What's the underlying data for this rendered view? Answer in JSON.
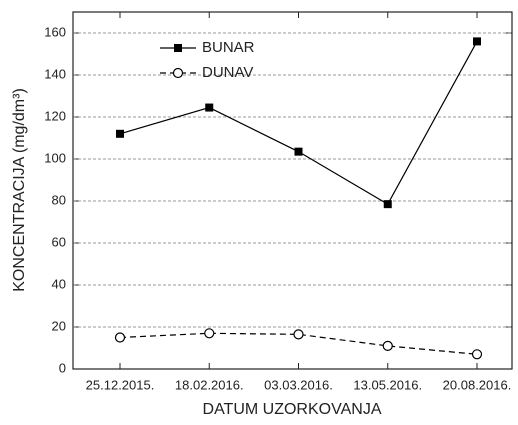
{
  "chart_data": {
    "type": "line",
    "categories": [
      "25.12.2015.",
      "18.02.2016.",
      "03.03.2016.",
      "13.05.2016.",
      "20.08.2016."
    ],
    "series": [
      {
        "name": "BUNAR",
        "color": "#000000",
        "line_style": "solid",
        "marker": "square",
        "values": [
          112,
          124.5,
          103.5,
          78.5,
          156
        ]
      },
      {
        "name": "DUNAV",
        "color": "#000000",
        "line_style": "dashed",
        "marker": "circle",
        "values": [
          15,
          17,
          16.5,
          11,
          7
        ]
      }
    ],
    "x_label": "DATUM UZORKOVANJA",
    "y_label": "KONCENTRACIJA (mg/dm³)",
    "ylim": [
      0,
      170
    ],
    "yticks": [
      0,
      20,
      40,
      60,
      80,
      100,
      120,
      140,
      160
    ],
    "grid": true,
    "legend": "upper left"
  }
}
